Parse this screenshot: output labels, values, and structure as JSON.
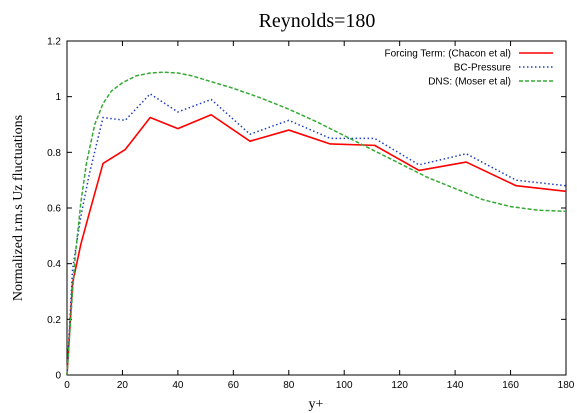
{
  "chart_data": {
    "type": "line",
    "title": "Reynolds=180",
    "xlabel": "y+",
    "ylabel": "Normalized r.m.s Uz fluctuations",
    "xlim": [
      0,
      180
    ],
    "ylim": [
      0,
      1.2
    ],
    "xticks": [
      0,
      20,
      40,
      60,
      80,
      100,
      120,
      140,
      160,
      180
    ],
    "yticks": [
      0,
      0.2,
      0.4,
      0.6,
      0.8,
      1,
      1.2
    ],
    "grid": false,
    "legend_position": "top-right",
    "series": [
      {
        "name": "Forcing Term: (Chacon et al)",
        "color": "#ff0000",
        "style": "solid",
        "x": [
          0,
          2,
          5,
          8,
          13,
          21,
          30,
          40,
          52,
          66,
          80,
          95,
          111,
          127,
          144,
          162,
          180
        ],
        "y": [
          0,
          0.33,
          0.47,
          0.58,
          0.76,
          0.81,
          0.925,
          0.885,
          0.935,
          0.84,
          0.88,
          0.83,
          0.825,
          0.735,
          0.765,
          0.68,
          0.66
        ]
      },
      {
        "name": "BC-Pressure",
        "color": "#1f3fbf",
        "style": "dotted",
        "x": [
          0,
          2,
          5,
          8,
          13,
          21,
          30,
          40,
          52,
          66,
          80,
          95,
          111,
          127,
          144,
          162,
          180
        ],
        "y": [
          0,
          0.38,
          0.57,
          0.72,
          0.925,
          0.915,
          1.01,
          0.945,
          0.99,
          0.865,
          0.915,
          0.85,
          0.85,
          0.755,
          0.795,
          0.7,
          0.68
        ]
      },
      {
        "name": "DNS: (Moser et al)",
        "color": "#33aa33",
        "style": "dashed",
        "x": [
          0,
          1,
          2,
          3,
          5,
          7,
          10,
          13,
          16,
          20,
          25,
          30,
          35,
          40,
          45,
          50,
          60,
          70,
          80,
          90,
          100,
          110,
          120,
          130,
          140,
          150,
          160,
          170,
          180
        ],
        "y": [
          0,
          0.15,
          0.3,
          0.43,
          0.62,
          0.76,
          0.9,
          0.975,
          1.02,
          1.05,
          1.075,
          1.085,
          1.088,
          1.085,
          1.075,
          1.06,
          1.03,
          0.995,
          0.955,
          0.91,
          0.86,
          0.81,
          0.76,
          0.71,
          0.67,
          0.63,
          0.605,
          0.592,
          0.588
        ]
      }
    ]
  }
}
